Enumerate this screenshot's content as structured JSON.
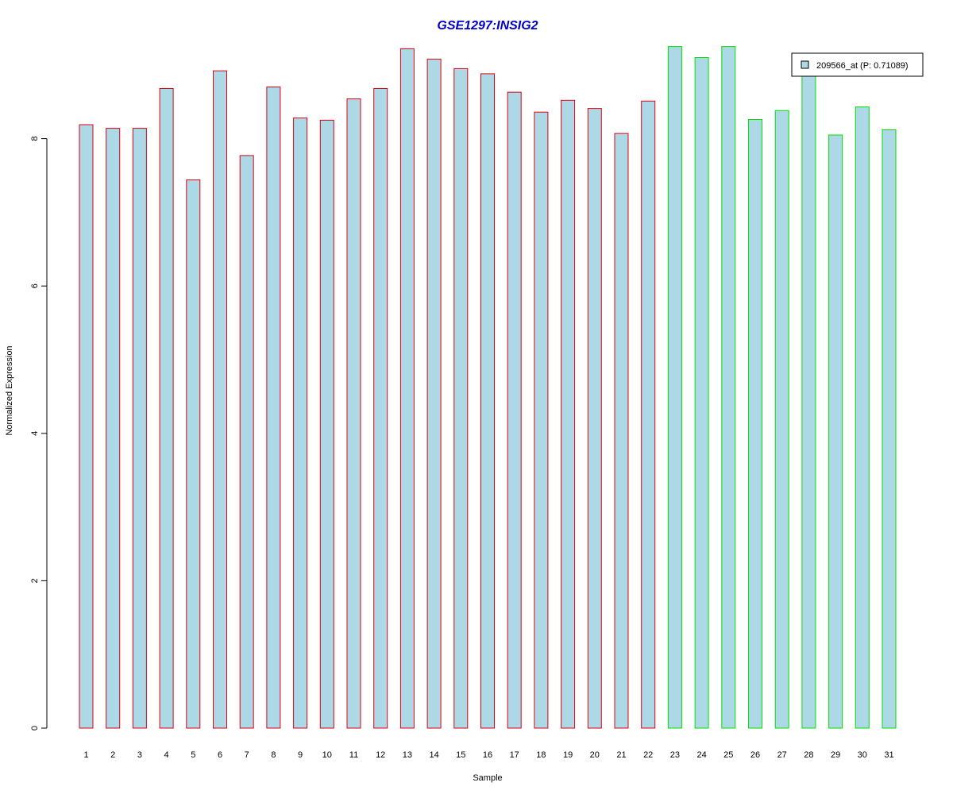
{
  "chart_data": {
    "type": "bar",
    "title": "GSE1297:INSIG2",
    "xlabel": "Sample",
    "ylabel": "Normalized Expression",
    "categories": [
      "1",
      "2",
      "3",
      "4",
      "5",
      "6",
      "7",
      "8",
      "9",
      "10",
      "11",
      "12",
      "13",
      "14",
      "15",
      "16",
      "17",
      "18",
      "19",
      "20",
      "21",
      "22",
      "23",
      "24",
      "25",
      "26",
      "27",
      "28",
      "29",
      "30",
      "31"
    ],
    "series": [
      {
        "name": "209566_at (P: 0.71089)",
        "values": [
          8.19,
          8.14,
          8.14,
          8.68,
          7.44,
          8.92,
          7.77,
          8.7,
          8.28,
          8.25,
          8.54,
          8.68,
          9.22,
          9.08,
          8.95,
          8.88,
          8.63,
          8.36,
          8.52,
          8.41,
          8.07,
          8.51,
          9.25,
          9.1,
          9.25,
          8.26,
          8.38,
          8.95,
          8.05,
          8.43,
          8.12
        ]
      }
    ],
    "group_colors": [
      "#e0000f",
      "#e0000f",
      "#e0000f",
      "#e0000f",
      "#e0000f",
      "#e0000f",
      "#e0000f",
      "#e0000f",
      "#e0000f",
      "#e0000f",
      "#e0000f",
      "#e0000f",
      "#e0000f",
      "#e0000f",
      "#e0000f",
      "#e0000f",
      "#e0000f",
      "#e0000f",
      "#e0000f",
      "#e0000f",
      "#e0000f",
      "#e0000f",
      "#00e000",
      "#00e000",
      "#00e000",
      "#00e000",
      "#00e000",
      "#00e000",
      "#00e000",
      "#00e000",
      "#00e000"
    ],
    "yticks": [
      0,
      2,
      4,
      6,
      8
    ],
    "ylim": [
      0,
      9.25
    ],
    "bar_fill": "#add8e6",
    "title_color": "#0000cc",
    "grid": false,
    "legend_position": "top-right"
  }
}
